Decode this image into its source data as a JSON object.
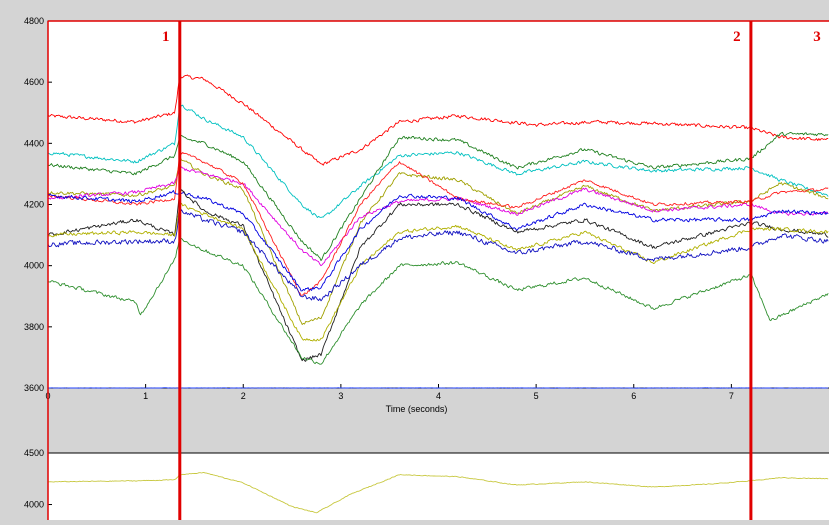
{
  "chart_data": [
    {
      "type": "line",
      "title": "",
      "xlabel": "Time (seconds)",
      "ylabel": "",
      "xlim": [
        0,
        8
      ],
      "ylim": [
        3600,
        4800
      ],
      "grid": false,
      "xticks": [
        "0",
        "1",
        "2",
        "3",
        "4",
        "5",
        "6",
        "7"
      ],
      "yticks": [
        "3600",
        "3800",
        "4000",
        "4200",
        "4400",
        "4600",
        "4800"
      ],
      "markers": [
        {
          "label": "1",
          "x": 1.35
        },
        {
          "label": "2",
          "x": 7.2
        },
        {
          "label": "3",
          "x": 8.3
        }
      ],
      "series": [
        {
          "color": "#ff0000",
          "noise": 8,
          "points": [
            [
              0,
              4490
            ],
            [
              0.9,
              4470
            ],
            [
              1.3,
              4500
            ],
            [
              1.35,
              4620
            ],
            [
              1.6,
              4610
            ],
            [
              2.0,
              4530
            ],
            [
              2.6,
              4380
            ],
            [
              2.8,
              4330
            ],
            [
              3.2,
              4380
            ],
            [
              3.6,
              4470
            ],
            [
              4.2,
              4490
            ],
            [
              5.0,
              4460
            ],
            [
              5.6,
              4470
            ],
            [
              6.2,
              4465
            ],
            [
              7.2,
              4450
            ],
            [
              7.5,
              4420
            ],
            [
              8,
              4410
            ]
          ]
        },
        {
          "color": "#00c0c0",
          "noise": 8,
          "points": [
            [
              0,
              4370
            ],
            [
              0.9,
              4340
            ],
            [
              1.3,
              4400
            ],
            [
              1.35,
              4530
            ],
            [
              1.6,
              4480
            ],
            [
              2.0,
              4420
            ],
            [
              2.6,
              4200
            ],
            [
              2.8,
              4150
            ],
            [
              3.2,
              4260
            ],
            [
              3.6,
              4360
            ],
            [
              4.2,
              4370
            ],
            [
              4.8,
              4300
            ],
            [
              5.5,
              4340
            ],
            [
              6.2,
              4310
            ],
            [
              7.2,
              4320
            ],
            [
              7.5,
              4280
            ],
            [
              8,
              4230
            ]
          ]
        },
        {
          "color": "#208020",
          "noise": 8,
          "points": [
            [
              0,
              4330
            ],
            [
              0.9,
              4300
            ],
            [
              1.3,
              4360
            ],
            [
              1.35,
              4420
            ],
            [
              1.6,
              4400
            ],
            [
              2.0,
              4340
            ],
            [
              2.6,
              4080
            ],
            [
              2.8,
              4020
            ],
            [
              3.2,
              4220
            ],
            [
              3.6,
              4420
            ],
            [
              4.2,
              4410
            ],
            [
              4.8,
              4320
            ],
            [
              5.5,
              4380
            ],
            [
              6.2,
              4320
            ],
            [
              7.2,
              4350
            ],
            [
              7.5,
              4430
            ],
            [
              8,
              4430
            ]
          ]
        },
        {
          "color": "#a0a000",
          "noise": 8,
          "points": [
            [
              0,
              4240
            ],
            [
              0.9,
              4230
            ],
            [
              1.3,
              4260
            ],
            [
              1.35,
              4350
            ],
            [
              1.6,
              4300
            ],
            [
              2.0,
              4250
            ],
            [
              2.6,
              3810
            ],
            [
              2.8,
              3830
            ],
            [
              3.2,
              4140
            ],
            [
              3.6,
              4300
            ],
            [
              4.2,
              4280
            ],
            [
              4.8,
              4170
            ],
            [
              5.5,
              4260
            ],
            [
              6.2,
              4180
            ],
            [
              7.2,
              4210
            ],
            [
              7.5,
              4270
            ],
            [
              8,
              4220
            ]
          ]
        },
        {
          "color": "#e000e0",
          "noise": 8,
          "points": [
            [
              0,
              4220
            ],
            [
              0.9,
              4240
            ],
            [
              1.3,
              4270
            ],
            [
              1.35,
              4320
            ],
            [
              1.6,
              4300
            ],
            [
              2.0,
              4270
            ],
            [
              2.6,
              4050
            ],
            [
              2.8,
              4000
            ],
            [
              3.2,
              4160
            ],
            [
              3.6,
              4210
            ],
            [
              4.2,
              4220
            ],
            [
              4.8,
              4170
            ],
            [
              5.5,
              4250
            ],
            [
              6.2,
              4180
            ],
            [
              7.2,
              4200
            ],
            [
              7.5,
              4170
            ],
            [
              8,
              4170
            ]
          ]
        },
        {
          "color": "#ff2020",
          "noise": 7,
          "points": [
            [
              0,
              4230
            ],
            [
              0.9,
              4200
            ],
            [
              1.3,
              4220
            ],
            [
              1.35,
              4370
            ],
            [
              1.6,
              4340
            ],
            [
              2.0,
              4270
            ],
            [
              2.6,
              3900
            ],
            [
              2.8,
              3950
            ],
            [
              3.2,
              4200
            ],
            [
              3.6,
              4340
            ],
            [
              4.2,
              4220
            ],
            [
              4.8,
              4190
            ],
            [
              5.5,
              4280
            ],
            [
              6.2,
              4200
            ],
            [
              7.2,
              4210
            ],
            [
              7.5,
              4240
            ],
            [
              8,
              4250
            ]
          ]
        },
        {
          "color": "#0000e0",
          "noise": 9,
          "points": [
            [
              0,
              4230
            ],
            [
              0.9,
              4210
            ],
            [
              1.3,
              4240
            ],
            [
              1.35,
              4240
            ],
            [
              1.6,
              4220
            ],
            [
              2.0,
              4170
            ],
            [
              2.6,
              3920
            ],
            [
              2.8,
              3930
            ],
            [
              3.2,
              4120
            ],
            [
              3.6,
              4230
            ],
            [
              4.2,
              4220
            ],
            [
              4.8,
              4120
            ],
            [
              5.5,
              4200
            ],
            [
              6.2,
              4150
            ],
            [
              7.2,
              4150
            ],
            [
              7.5,
              4180
            ],
            [
              8,
              4170
            ]
          ]
        },
        {
          "color": "#202020",
          "noise": 9,
          "points": [
            [
              0,
              4100
            ],
            [
              0.9,
              4150
            ],
            [
              1.3,
              4100
            ],
            [
              1.35,
              4250
            ],
            [
              1.6,
              4180
            ],
            [
              2.0,
              4130
            ],
            [
              2.6,
              3690
            ],
            [
              2.8,
              3710
            ],
            [
              3.2,
              4060
            ],
            [
              3.6,
              4200
            ],
            [
              4.2,
              4200
            ],
            [
              4.8,
              4110
            ],
            [
              5.5,
              4150
            ],
            [
              6.2,
              4060
            ],
            [
              7.2,
              4140
            ],
            [
              7.5,
              4120
            ],
            [
              8,
              4100
            ]
          ]
        },
        {
          "color": "#b0b000",
          "noise": 8,
          "points": [
            [
              0,
              4100
            ],
            [
              0.9,
              4110
            ],
            [
              1.3,
              4100
            ],
            [
              1.35,
              4200
            ],
            [
              1.6,
              4170
            ],
            [
              2.0,
              4120
            ],
            [
              2.6,
              3760
            ],
            [
              2.8,
              3760
            ],
            [
              3.2,
              4000
            ],
            [
              3.6,
              4110
            ],
            [
              4.2,
              4130
            ],
            [
              4.8,
              4050
            ],
            [
              5.5,
              4110
            ],
            [
              6.2,
              4010
            ],
            [
              7.2,
              4120
            ],
            [
              7.5,
              4120
            ],
            [
              8,
              4110
            ]
          ]
        },
        {
          "color": "#1010c0",
          "noise": 12,
          "points": [
            [
              0,
              4070
            ],
            [
              0.9,
              4080
            ],
            [
              1.3,
              4080
            ],
            [
              1.35,
              4180
            ],
            [
              1.6,
              4150
            ],
            [
              2.0,
              4110
            ],
            [
              2.6,
              3900
            ],
            [
              2.8,
              3890
            ],
            [
              3.2,
              4000
            ],
            [
              3.6,
              4090
            ],
            [
              4.2,
              4110
            ],
            [
              4.8,
              4040
            ],
            [
              5.5,
              4080
            ],
            [
              6.2,
              4020
            ],
            [
              7.2,
              4060
            ],
            [
              7.5,
              4100
            ],
            [
              8,
              4080
            ]
          ]
        },
        {
          "color": "#309030",
          "noise": 8,
          "points": [
            [
              0,
              3950
            ],
            [
              0.9,
              3880
            ],
            [
              0.95,
              3840
            ],
            [
              1.3,
              4020
            ],
            [
              1.35,
              4090
            ],
            [
              1.6,
              4050
            ],
            [
              2.0,
              4000
            ],
            [
              2.6,
              3700
            ],
            [
              2.8,
              3680
            ],
            [
              3.2,
              3870
            ],
            [
              3.6,
              4000
            ],
            [
              4.2,
              4010
            ],
            [
              4.8,
              3920
            ],
            [
              5.5,
              3960
            ],
            [
              6.2,
              3860
            ],
            [
              7.2,
              3970
            ],
            [
              7.4,
              3820
            ],
            [
              8,
              3910
            ]
          ]
        },
        {
          "color": "#2040ff",
          "noise": 1,
          "points": [
            [
              0,
              3600
            ],
            [
              8,
              3600
            ]
          ]
        }
      ]
    },
    {
      "type": "line",
      "title": "",
      "xlabel": "",
      "ylabel": "",
      "xlim": [
        0,
        8
      ],
      "ylim": [
        3850,
        4500
      ],
      "yticks": [
        "4000",
        "4500"
      ],
      "series": [
        {
          "color": "#c8c840",
          "noise": 5,
          "points": [
            [
              0,
              4220
            ],
            [
              0.9,
              4230
            ],
            [
              1.3,
              4240
            ],
            [
              1.35,
              4290
            ],
            [
              1.6,
              4310
            ],
            [
              2.0,
              4210
            ],
            [
              2.5,
              3980
            ],
            [
              2.75,
              3920
            ],
            [
              3.1,
              4100
            ],
            [
              3.6,
              4290
            ],
            [
              4.2,
              4270
            ],
            [
              4.8,
              4190
            ],
            [
              5.5,
              4220
            ],
            [
              6.2,
              4170
            ],
            [
              6.8,
              4200
            ],
            [
              7.2,
              4230
            ],
            [
              7.5,
              4260
            ],
            [
              8,
              4250
            ]
          ]
        }
      ]
    }
  ]
}
